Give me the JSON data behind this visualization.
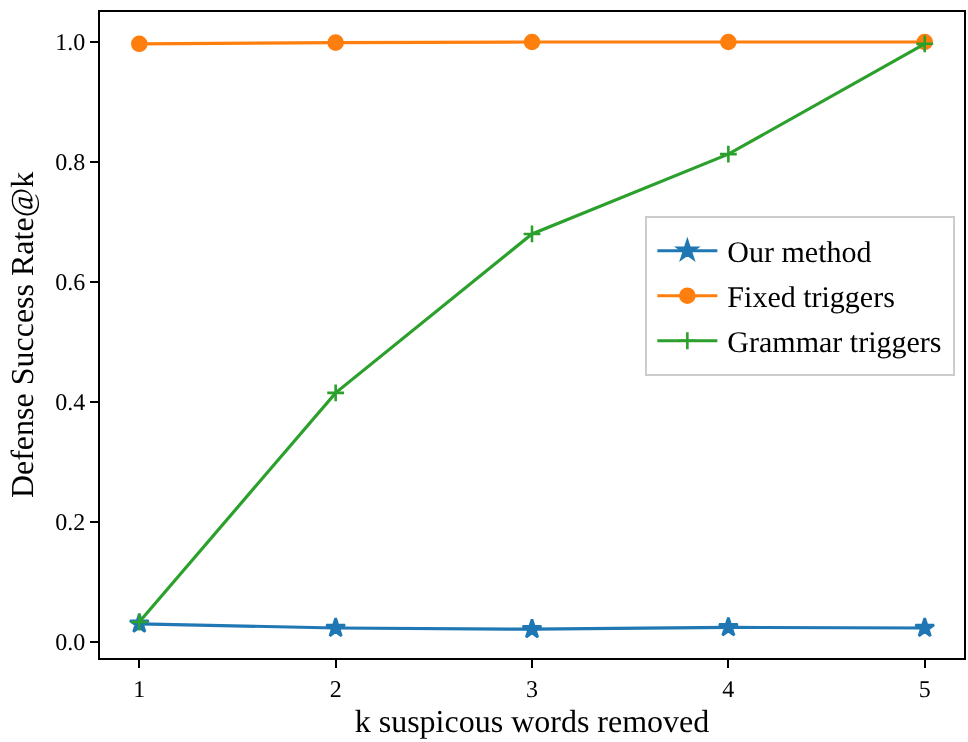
{
  "chart_data": {
    "type": "line",
    "xlabel": "k suspicous words removed",
    "ylabel": "Defense Success Rate@k",
    "x": [
      1,
      2,
      3,
      4,
      5
    ],
    "series": [
      {
        "name": "Our method",
        "color": "#1f77b4",
        "marker": "star",
        "values": [
          0.03,
          0.023,
          0.021,
          0.024,
          0.023
        ]
      },
      {
        "name": "Fixed triggers",
        "color": "#ff7f0e",
        "marker": "circle",
        "values": [
          0.997,
          0.999,
          1.0,
          1.0,
          1.0
        ]
      },
      {
        "name": "Grammar triggers",
        "color": "#2ca02c",
        "marker": "cross",
        "values": [
          0.033,
          0.415,
          0.68,
          0.813,
          0.997
        ]
      }
    ],
    "xlim": [
      0.8,
      5.2
    ],
    "ylim": [
      -0.027,
      1.05
    ],
    "xticks": [
      1,
      2,
      3,
      4,
      5
    ],
    "yticks": [
      {
        "value": 0,
        "label": "0.0"
      },
      0.2,
      0.4,
      0.6,
      0.8,
      {
        "value": 1,
        "label": "1.0"
      }
    ],
    "grid": false,
    "legend": "right",
    "line_style": "solid"
  }
}
